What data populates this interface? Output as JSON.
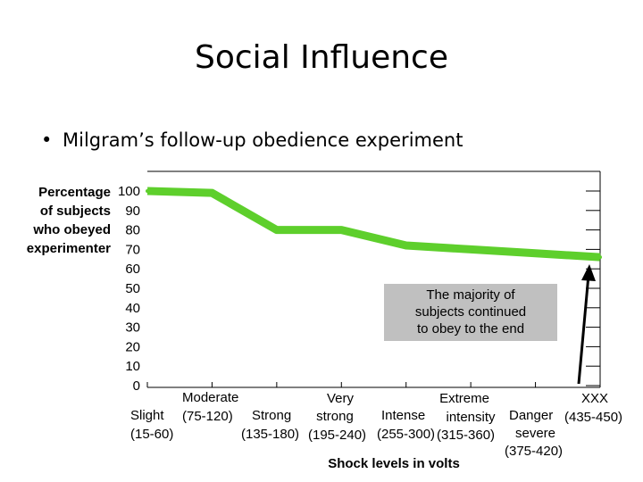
{
  "slide": {
    "title": "Social Influence",
    "bullet_text": "Milgram’s follow-up obedience experiment"
  },
  "colors": {
    "line": "#5ecf2c",
    "callout_bg": "#c0c0c0",
    "arrow": "#000000",
    "grid": "#000000"
  },
  "chart_data": {
    "type": "line",
    "ylabel": [
      "Percentage",
      "of subjects",
      "who obeyed",
      "experimenter"
    ],
    "xlabel": "Shock levels in volts",
    "ylim": [
      0,
      100
    ],
    "yticks": [
      100,
      90,
      80,
      70,
      60,
      50,
      40,
      30,
      20,
      10,
      0
    ],
    "grid": "horizontal tick marks on right edge",
    "series": [
      {
        "points": [
          {
            "x": 0,
            "y": 100
          },
          {
            "x": 1,
            "y": 99
          },
          {
            "x": 2,
            "y": 80
          },
          {
            "x": 3,
            "y": 80
          },
          {
            "x": 4,
            "y": 72
          },
          {
            "x": 5,
            "y": 70
          },
          {
            "x": 6,
            "y": 68
          },
          {
            "x": 7,
            "y": 66
          }
        ]
      }
    ],
    "categories": [
      {
        "name": "Slight",
        "range": "(15-60)"
      },
      {
        "name": "Moderate",
        "range": "(75-120)",
        "accent": true
      },
      {
        "name": "Strong",
        "range": "(135-180)"
      },
      {
        "name": "Very strong",
        "lines": [
          "Very",
          "strong"
        ],
        "range": "(195-240)",
        "accent": true
      },
      {
        "name": "Intense",
        "range": "(255-300)"
      },
      {
        "name": "Extreme intensity",
        "lines": [
          "Extreme",
          "intensity"
        ],
        "range": "(315-360)",
        "accent": true
      },
      {
        "name": "Danger severe",
        "lines": [
          "Danger",
          "severe"
        ],
        "range": "(375-420)"
      },
      {
        "name": "XXX",
        "range": "(435-450)",
        "accent": true
      }
    ],
    "annotation": {
      "lines": [
        "The majority of",
        "subjects continued",
        "to obey to the end"
      ]
    }
  }
}
